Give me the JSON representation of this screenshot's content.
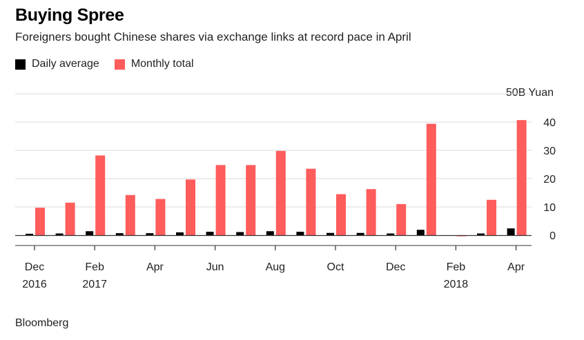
{
  "header": {
    "title": "Buying Spree",
    "subtitle": "Foreigners bought Chinese shares via exchange links at record pace in April"
  },
  "legend": {
    "daily_label": "Daily average",
    "monthly_label": "Monthly total"
  },
  "unit_label": "50B Yuan",
  "source": "Bloomberg",
  "colors": {
    "daily": "#000000",
    "monthly": "#ff5c5c",
    "grid": "#d9d9d9",
    "axis": "#333333"
  },
  "chart_data": {
    "type": "bar",
    "title": "Buying Spree",
    "subtitle": "Foreigners bought Chinese shares via exchange links at record pace in April",
    "ylabel": "50B Yuan",
    "ylim": [
      0,
      45
    ],
    "yticks": [
      0,
      10,
      20,
      30,
      40
    ],
    "y_axis_side": "right",
    "grid": true,
    "legend_position": "top-left",
    "categories": [
      "Dec 2016",
      "Jan 2017",
      "Feb 2017",
      "Mar 2017",
      "Apr 2017",
      "May 2017",
      "Jun 2017",
      "Jul 2017",
      "Aug 2017",
      "Sep 2017",
      "Oct 2017",
      "Nov 2017",
      "Dec 2017",
      "Jan 2018",
      "Feb 2018",
      "Mar 2018",
      "Apr 2018"
    ],
    "series": [
      {
        "name": "Daily average",
        "values": [
          0.5,
          0.6,
          1.4,
          0.7,
          0.7,
          1.0,
          1.2,
          1.1,
          1.4,
          1.2,
          0.8,
          0.8,
          0.6,
          1.9,
          -0.2,
          0.6,
          2.4
        ]
      },
      {
        "name": "Monthly total",
        "values": [
          9.7,
          11.5,
          28.2,
          14.2,
          12.8,
          19.7,
          24.8,
          24.8,
          29.8,
          23.5,
          14.5,
          16.3,
          11.0,
          39.4,
          -0.4,
          12.5,
          40.7
        ]
      }
    ],
    "x_tick_labels": [
      {
        "index": 0,
        "month": "Dec",
        "year": "2016"
      },
      {
        "index": 2,
        "month": "Feb",
        "year": "2017"
      },
      {
        "index": 4,
        "month": "Apr",
        "year": ""
      },
      {
        "index": 6,
        "month": "Jun",
        "year": ""
      },
      {
        "index": 8,
        "month": "Aug",
        "year": ""
      },
      {
        "index": 10,
        "month": "Oct",
        "year": ""
      },
      {
        "index": 12,
        "month": "Dec",
        "year": ""
      },
      {
        "index": 14,
        "month": "Feb",
        "year": "2018"
      },
      {
        "index": 16,
        "month": "Apr",
        "year": ""
      }
    ]
  }
}
